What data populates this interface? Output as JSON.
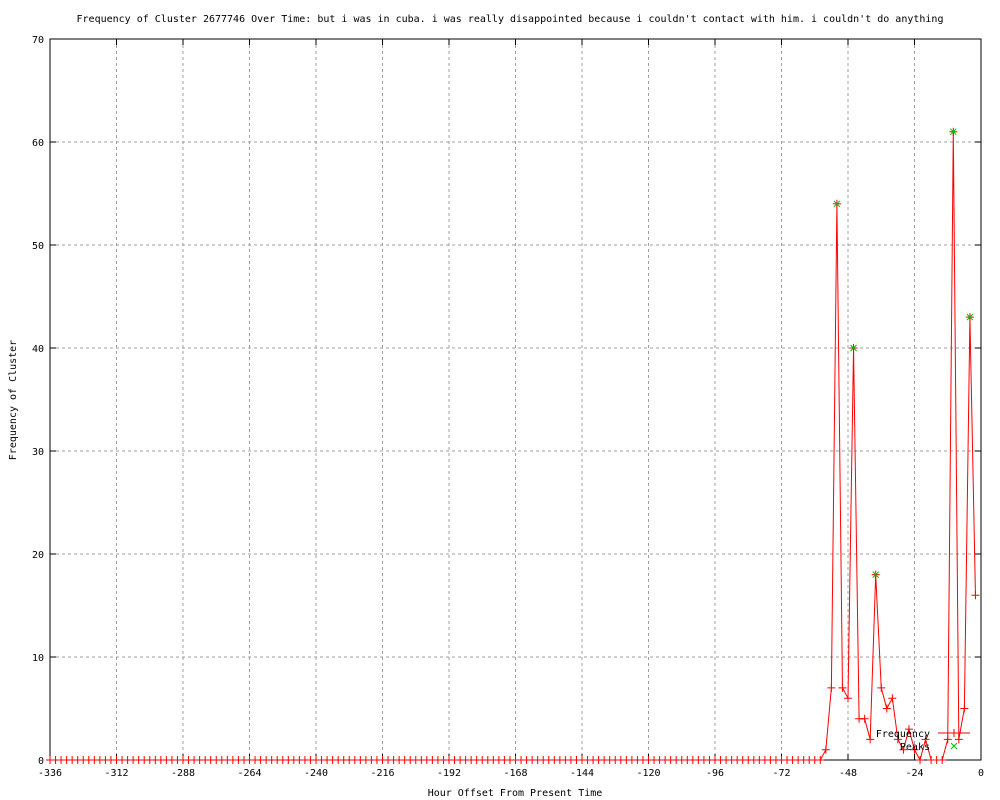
{
  "chart_data": {
    "type": "line",
    "title": "Frequency of Cluster 2677746 Over Time: but i was in cuba. i was really disappointed because i couldn't contact with him. i couldn't do anything",
    "xlabel": "Hour Offset From Present Time",
    "ylabel": "Frequency of Cluster",
    "xlim": [
      -336,
      0
    ],
    "ylim": [
      0,
      70
    ],
    "xticks": [
      -336,
      -312,
      -288,
      -264,
      -240,
      -216,
      -192,
      -168,
      -144,
      -120,
      -96,
      -72,
      -48,
      -24,
      0
    ],
    "yticks": [
      0,
      10,
      20,
      30,
      40,
      50,
      60,
      70
    ],
    "grid": true,
    "legend_position": "bottom-right",
    "colors": {
      "frequency": "#ff0000",
      "peaks": "#00c000"
    },
    "series": [
      {
        "name": "Frequency",
        "x": [
          -336,
          -334,
          -332,
          -330,
          -328,
          -326,
          -324,
          -322,
          -320,
          -318,
          -316,
          -314,
          -312,
          -310,
          -308,
          -306,
          -304,
          -302,
          -300,
          -298,
          -296,
          -294,
          -292,
          -290,
          -288,
          -286,
          -284,
          -282,
          -280,
          -278,
          -276,
          -274,
          -272,
          -270,
          -268,
          -266,
          -264,
          -262,
          -260,
          -258,
          -256,
          -254,
          -252,
          -250,
          -248,
          -246,
          -244,
          -242,
          -240,
          -238,
          -236,
          -234,
          -232,
          -230,
          -228,
          -226,
          -224,
          -222,
          -220,
          -218,
          -216,
          -214,
          -212,
          -210,
          -208,
          -206,
          -204,
          -202,
          -200,
          -198,
          -196,
          -194,
          -192,
          -190,
          -188,
          -186,
          -184,
          -182,
          -180,
          -178,
          -176,
          -174,
          -172,
          -170,
          -168,
          -166,
          -164,
          -162,
          -160,
          -158,
          -156,
          -154,
          -152,
          -150,
          -148,
          -146,
          -144,
          -142,
          -140,
          -138,
          -136,
          -134,
          -132,
          -130,
          -128,
          -126,
          -124,
          -122,
          -120,
          -118,
          -116,
          -114,
          -112,
          -110,
          -108,
          -106,
          -104,
          -102,
          -100,
          -98,
          -96,
          -94,
          -92,
          -90,
          -88,
          -86,
          -84,
          -82,
          -80,
          -78,
          -76,
          -74,
          -72,
          -70,
          -68,
          -66,
          -64,
          -62,
          -60,
          -58,
          -56,
          -54,
          -52,
          -50,
          -48,
          -46,
          -44,
          -42,
          -40,
          -38,
          -36,
          -34,
          -32,
          -30,
          -28,
          -26,
          -24,
          -22,
          -20,
          -18,
          -16,
          -14,
          -12,
          -10,
          -8,
          -6,
          -4,
          -2
        ],
        "y": [
          0,
          0,
          0,
          0,
          0,
          0,
          0,
          0,
          0,
          0,
          0,
          0,
          0,
          0,
          0,
          0,
          0,
          0,
          0,
          0,
          0,
          0,
          0,
          0,
          0,
          0,
          0,
          0,
          0,
          0,
          0,
          0,
          0,
          0,
          0,
          0,
          0,
          0,
          0,
          0,
          0,
          0,
          0,
          0,
          0,
          0,
          0,
          0,
          0,
          0,
          0,
          0,
          0,
          0,
          0,
          0,
          0,
          0,
          0,
          0,
          0,
          0,
          0,
          0,
          0,
          0,
          0,
          0,
          0,
          0,
          0,
          0,
          0,
          0,
          0,
          0,
          0,
          0,
          0,
          0,
          0,
          0,
          0,
          0,
          0,
          0,
          0,
          0,
          0,
          0,
          0,
          0,
          0,
          0,
          0,
          0,
          0,
          0,
          0,
          0,
          0,
          0,
          0,
          0,
          0,
          0,
          0,
          0,
          0,
          0,
          0,
          0,
          0,
          0,
          0,
          0,
          0,
          0,
          0,
          0,
          0,
          0,
          0,
          0,
          0,
          0,
          0,
          0,
          0,
          0,
          0,
          0,
          0,
          0,
          0,
          0,
          0,
          0,
          0,
          0,
          1,
          7,
          54,
          7,
          6,
          40,
          4,
          4,
          2,
          18,
          7,
          5,
          6,
          2,
          1,
          3,
          1,
          0,
          2,
          0,
          0,
          0,
          2,
          61,
          2,
          5,
          43,
          16
        ]
      },
      {
        "name": "Peaks",
        "x": [
          -52,
          -46,
          -38,
          -10,
          -4
        ],
        "y": [
          54,
          40,
          18,
          61,
          43
        ]
      }
    ]
  }
}
